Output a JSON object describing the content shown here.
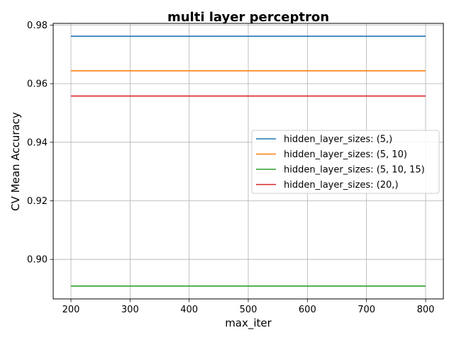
{
  "chart_data": {
    "type": "line",
    "title": "multi layer perceptron",
    "xlabel": "max_iter",
    "ylabel": "CV Mean Accuracy",
    "x": [
      200,
      300,
      400,
      500,
      600,
      700,
      800
    ],
    "xlim": [
      170,
      830
    ],
    "ylim": [
      0.8865,
      0.9806
    ],
    "xticks": [
      200,
      300,
      400,
      500,
      600,
      700,
      800
    ],
    "yticks": [
      0.9,
      0.92,
      0.94,
      0.96,
      0.98
    ],
    "ytick_labels": [
      "0.90",
      "0.92",
      "0.94",
      "0.96",
      "0.98"
    ],
    "grid": true,
    "legend_placement": "center-right",
    "series": [
      {
        "name": "hidden_layer_sizes: (5,)",
        "color": "#1f77b4",
        "values": [
          0.9762,
          0.9762,
          0.9762,
          0.9762,
          0.9762,
          0.9762,
          0.9762
        ]
      },
      {
        "name": "hidden_layer_sizes: (5, 10)",
        "color": "#ff7f0e",
        "values": [
          0.9644,
          0.9644,
          0.9644,
          0.9644,
          0.9644,
          0.9644,
          0.9644
        ]
      },
      {
        "name": "hidden_layer_sizes: (5, 10, 15)",
        "color": "#2ca02c",
        "values": [
          0.8909,
          0.8909,
          0.8909,
          0.8909,
          0.8909,
          0.8909,
          0.8909
        ]
      },
      {
        "name": "hidden_layer_sizes: (20,)",
        "color": "#d62728",
        "values": [
          0.9558,
          0.9558,
          0.9558,
          0.9558,
          0.9558,
          0.9558,
          0.9558
        ]
      }
    ]
  }
}
